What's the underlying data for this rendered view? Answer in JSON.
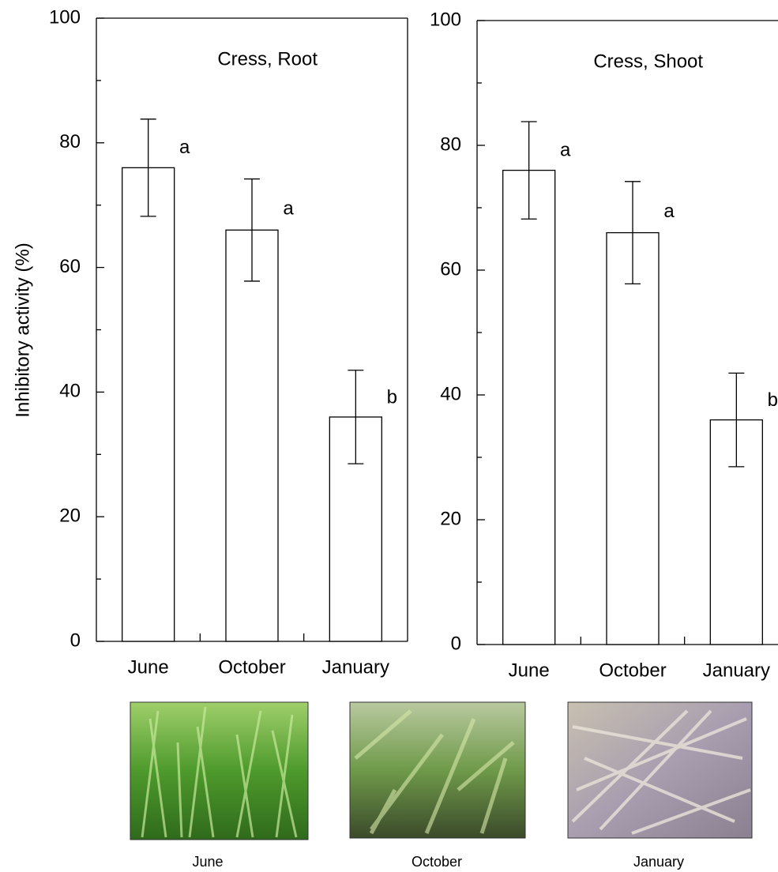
{
  "chart_data": [
    {
      "type": "bar",
      "title": "Cress, Root",
      "y_label": "Inhibitory activity  (%)",
      "categories": [
        "June",
        "October",
        "January"
      ],
      "values": [
        76,
        66,
        36
      ],
      "errors": [
        7.8,
        8.2,
        7.5
      ],
      "annotations": [
        "a",
        "a",
        "b"
      ],
      "color": "#ffffff",
      "ylim": [
        0,
        100
      ],
      "yticks": [
        0,
        20,
        40,
        60,
        80,
        100
      ],
      "yminorticks": [
        10,
        30,
        50,
        70,
        90
      ]
    },
    {
      "type": "bar",
      "title": "Cress, Shoot",
      "categories": [
        "June",
        "October",
        "January"
      ],
      "values": [
        76,
        66,
        36
      ],
      "errors": [
        7.8,
        8.2,
        7.5
      ],
      "annotations": [
        "a",
        "a",
        "b"
      ],
      "color": "#ffffff",
      "ylim": [
        0,
        100
      ],
      "yticks": [
        0,
        20,
        40,
        60,
        80,
        100
      ],
      "yminorticks": [
        10,
        30,
        50,
        70,
        90
      ]
    }
  ],
  "photos": {
    "captions": [
      "June",
      "October",
      "January"
    ]
  }
}
